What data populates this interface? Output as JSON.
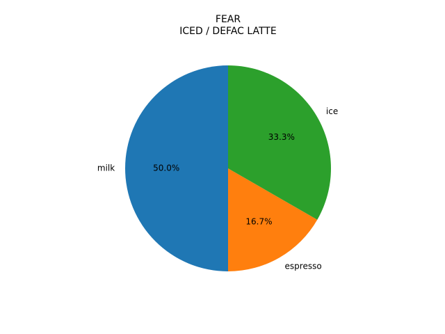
{
  "chart_data": {
    "type": "pie",
    "title_lines": [
      "FEAR",
      "ICED / DEFAC LATTE"
    ],
    "slices": [
      {
        "label": "milk",
        "value": 50.0,
        "pct_label": "50.0%",
        "color": "#1f77b4"
      },
      {
        "label": "espresso",
        "value": 16.7,
        "pct_label": "16.7%",
        "color": "#ff7f0e"
      },
      {
        "label": "ice",
        "value": 33.3,
        "pct_label": "33.3%",
        "color": "#2ca02c"
      }
    ],
    "start_angle_deg": 90,
    "direction": "counterclockwise"
  }
}
